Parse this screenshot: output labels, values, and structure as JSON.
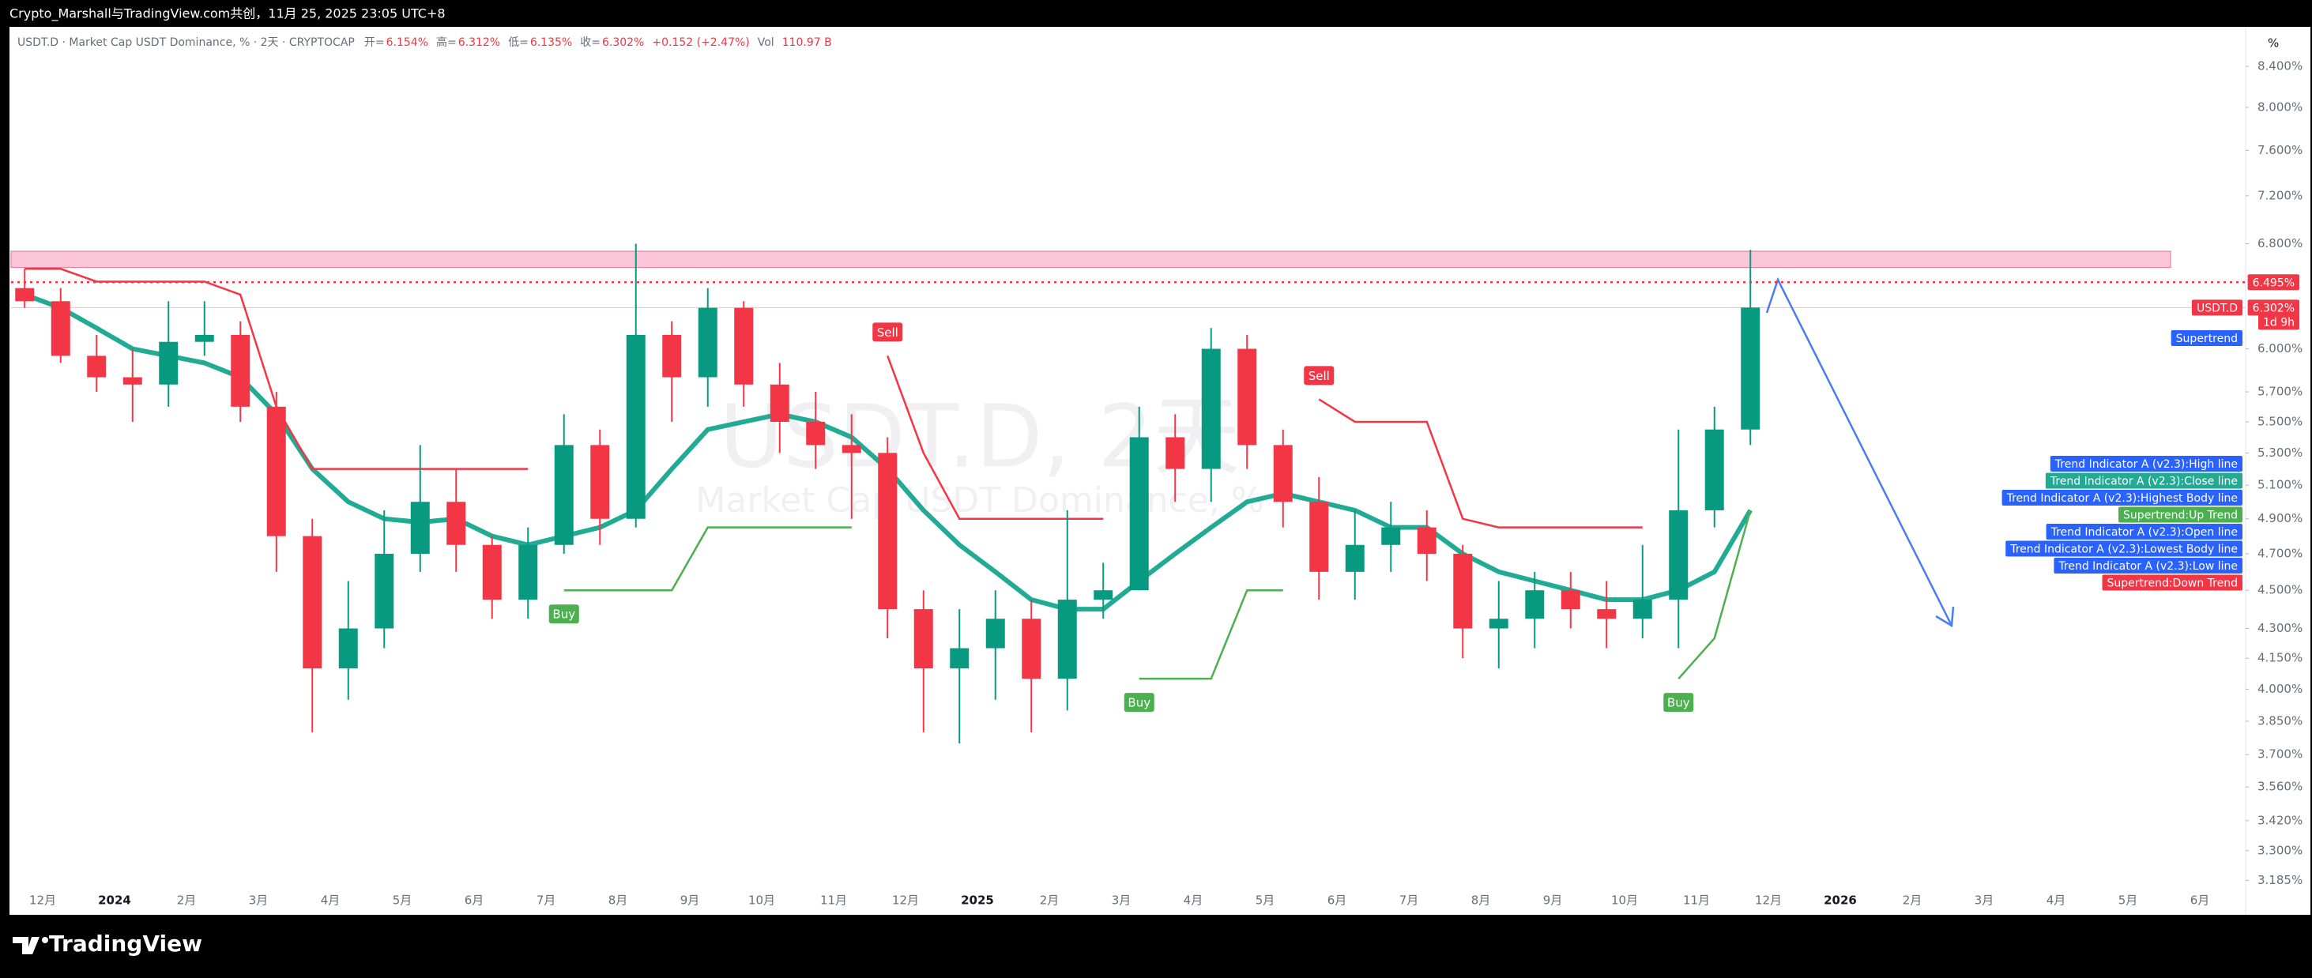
{
  "header": {
    "caption": "Crypto_Marshall与TradingView.com共创，11月 25, 2025 23:05 UTC+8",
    "brand": "TradingView"
  },
  "chart_data": {
    "type": "candlestick",
    "symbol_line": "USDT.D · Market Cap USDT Dominance, % · 2天 · CRYPTOCAP",
    "ohlc_line": [
      "开=",
      "6.154%",
      "高=",
      "6.312%",
      "低=",
      "6.135%",
      "收=",
      "6.302%",
      "+0.152 (+2.47%)",
      "Vol",
      "110.97 B"
    ],
    "watermark": [
      "USDT.D, 2天",
      "Market Cap USDT Dominance, %"
    ],
    "axis_unit": "%",
    "log_scale": true,
    "grid": false,
    "ylim": [
      3.06,
      8.78
    ],
    "yticks": [
      {
        "value": 8.4,
        "label": "8.400%"
      },
      {
        "value": 8.0,
        "label": "8.000%"
      },
      {
        "value": 7.6,
        "label": "7.600%"
      },
      {
        "value": 7.2,
        "label": "7.200%"
      },
      {
        "value": 6.8,
        "label": "6.800%"
      },
      {
        "value": 6.0,
        "label": "6.000%"
      },
      {
        "value": 5.7,
        "label": "5.700%"
      },
      {
        "value": 5.5,
        "label": "5.500%"
      },
      {
        "value": 5.3,
        "label": "5.300%"
      },
      {
        "value": 5.1,
        "label": "5.100%"
      },
      {
        "value": 4.9,
        "label": "4.900%"
      },
      {
        "value": 4.7,
        "label": "4.700%"
      },
      {
        "value": 4.5,
        "label": "4.500%"
      },
      {
        "value": 4.3,
        "label": "4.300%"
      },
      {
        "value": 4.15,
        "label": "4.150%"
      },
      {
        "value": 4.0,
        "label": "4.000%"
      },
      {
        "value": 3.85,
        "label": "3.850%"
      },
      {
        "value": 3.7,
        "label": "3.700%"
      },
      {
        "value": 3.56,
        "label": "3.560%"
      },
      {
        "value": 3.42,
        "label": "3.420%"
      },
      {
        "value": 3.3,
        "label": "3.300%"
      },
      {
        "value": 3.185,
        "label": "3.185%"
      }
    ],
    "categories": [
      null,
      "12月",
      null,
      "2024",
      null,
      "2月",
      null,
      "3月",
      null,
      "4月",
      null,
      "5月",
      null,
      "6月",
      null,
      "7月",
      null,
      "8月",
      null,
      "9月",
      null,
      "10月",
      null,
      "11月",
      null,
      "12月",
      null,
      "2025",
      null,
      "2月",
      null,
      "3月",
      null,
      "4月",
      null,
      "5月",
      null,
      "6月",
      null,
      "7月",
      null,
      "8月",
      null,
      "9月",
      null,
      "10月",
      null,
      "11月",
      null,
      "12月",
      null,
      "2026",
      null,
      "2月",
      null,
      "3月",
      null,
      "4月",
      null,
      "5月",
      null,
      "6月",
      null
    ],
    "up_color": "#089981",
    "down_color": "#f23645",
    "open": [
      6.45,
      6.35,
      5.95,
      5.8,
      5.75,
      6.05,
      6.1,
      5.6,
      4.8,
      4.1,
      4.3,
      4.7,
      5.0,
      4.75,
      4.45,
      4.75,
      5.35,
      4.9,
      6.1,
      5.8,
      6.3,
      5.75,
      5.5,
      5.35,
      5.3,
      4.4,
      4.1,
      4.2,
      4.35,
      4.05,
      4.45,
      4.5,
      5.4,
      5.2,
      6.0,
      5.35,
      5.0,
      4.6,
      4.75,
      4.85,
      4.7,
      4.3,
      4.35,
      4.5,
      4.4,
      4.35,
      4.45,
      4.95,
      5.45,
      null,
      null,
      null,
      null,
      null,
      null,
      null,
      null,
      null,
      null,
      null,
      null,
      null,
      null
    ],
    "high": [
      6.6,
      6.45,
      6.1,
      6.0,
      6.35,
      6.35,
      6.2,
      5.7,
      4.9,
      4.55,
      4.95,
      5.35,
      5.2,
      4.8,
      4.85,
      5.55,
      5.45,
      6.8,
      6.2,
      6.45,
      6.35,
      5.9,
      5.7,
      5.55,
      5.4,
      4.5,
      4.4,
      4.5,
      4.45,
      4.95,
      4.65,
      5.6,
      5.55,
      6.15,
      6.1,
      5.45,
      5.15,
      4.95,
      5.0,
      4.95,
      4.75,
      4.55,
      4.6,
      4.6,
      4.55,
      4.75,
      5.45,
      5.6,
      6.75,
      null,
      null,
      null,
      null,
      null,
      null,
      null,
      null,
      null,
      null,
      null,
      null,
      null,
      null
    ],
    "low": [
      6.3,
      5.9,
      5.7,
      5.5,
      5.6,
      5.95,
      5.5,
      4.6,
      3.8,
      3.95,
      4.2,
      4.6,
      4.6,
      4.35,
      4.35,
      4.7,
      4.75,
      4.85,
      5.5,
      5.6,
      5.6,
      5.3,
      5.2,
      4.9,
      4.25,
      3.8,
      3.75,
      3.95,
      3.8,
      3.9,
      4.35,
      4.5,
      5.0,
      5.0,
      5.2,
      4.85,
      4.45,
      4.45,
      4.6,
      4.55,
      4.15,
      4.1,
      4.2,
      4.3,
      4.2,
      4.25,
      4.2,
      4.85,
      5.35,
      null,
      null,
      null,
      null,
      null,
      null,
      null,
      null,
      null,
      null,
      null,
      null,
      null,
      null
    ],
    "close": [
      6.35,
      5.95,
      5.8,
      5.75,
      6.05,
      6.1,
      5.6,
      4.8,
      4.1,
      4.3,
      4.7,
      5.0,
      4.75,
      4.45,
      4.75,
      5.35,
      4.9,
      6.1,
      5.8,
      6.3,
      5.75,
      5.5,
      5.35,
      5.3,
      4.4,
      4.1,
      4.2,
      4.35,
      4.05,
      4.45,
      4.5,
      5.4,
      5.2,
      6.0,
      5.35,
      5.0,
      4.6,
      4.75,
      4.85,
      4.7,
      4.3,
      4.35,
      4.5,
      4.4,
      4.35,
      4.45,
      4.95,
      5.45,
      6.302,
      null,
      null,
      null,
      null,
      null,
      null,
      null,
      null,
      null,
      null,
      null,
      null,
      null,
      null
    ],
    "series": [
      {
        "name": "Supertrend:Up Trend",
        "color": "#4caf50",
        "values": [
          null,
          null,
          null,
          null,
          null,
          null,
          null,
          null,
          null,
          null,
          null,
          null,
          null,
          null,
          null,
          4.5,
          4.5,
          4.5,
          4.5,
          4.85,
          4.85,
          4.85,
          4.85,
          4.85,
          null,
          null,
          null,
          null,
          null,
          null,
          null,
          4.05,
          4.05,
          4.05,
          4.5,
          4.5,
          null,
          null,
          null,
          null,
          null,
          null,
          null,
          null,
          null,
          null,
          4.05,
          4.25,
          4.95,
          null,
          null,
          null,
          null,
          null,
          null,
          null,
          null,
          null,
          null,
          null,
          null,
          null,
          null
        ]
      },
      {
        "name": "Supertrend:Down Trend",
        "color": "#f23645",
        "values": [
          6.6,
          6.6,
          6.5,
          6.5,
          6.5,
          6.5,
          6.4,
          5.6,
          5.2,
          5.2,
          5.2,
          5.2,
          5.2,
          5.2,
          5.2,
          null,
          null,
          null,
          null,
          null,
          null,
          null,
          null,
          null,
          5.95,
          5.3,
          4.9,
          4.9,
          4.9,
          4.9,
          4.9,
          null,
          null,
          null,
          null,
          null,
          5.65,
          5.5,
          5.5,
          5.5,
          4.9,
          4.85,
          4.85,
          4.85,
          4.85,
          4.85,
          null,
          null,
          null,
          null,
          null,
          null,
          null,
          null,
          null,
          null,
          null,
          null,
          null,
          null,
          null,
          null,
          null
        ]
      },
      {
        "name": "Trend Indicator A (v2.3):Close line",
        "color": "#22ab94",
        "values": [
          6.4,
          6.3,
          6.15,
          6.0,
          5.95,
          5.9,
          5.8,
          5.55,
          5.2,
          5.0,
          4.9,
          4.88,
          4.9,
          4.8,
          4.75,
          4.8,
          4.85,
          4.95,
          5.2,
          5.45,
          5.5,
          5.55,
          5.5,
          5.4,
          5.2,
          4.95,
          4.75,
          4.6,
          4.45,
          4.4,
          4.4,
          4.55,
          4.7,
          4.85,
          5.0,
          5.05,
          5.0,
          4.95,
          4.85,
          4.85,
          4.7,
          4.6,
          4.55,
          4.5,
          4.45,
          4.45,
          4.5,
          4.6,
          4.95,
          null,
          null,
          null,
          null,
          null,
          null,
          null,
          null,
          null,
          null,
          null,
          null,
          null,
          null
        ]
      }
    ],
    "signals": [
      null,
      null,
      null,
      null,
      null,
      null,
      null,
      null,
      null,
      null,
      null,
      null,
      null,
      null,
      null,
      "Buy",
      null,
      null,
      null,
      null,
      null,
      null,
      null,
      null,
      "Sell",
      null,
      null,
      null,
      null,
      null,
      null,
      "Buy",
      null,
      null,
      null,
      null,
      "Sell",
      null,
      null,
      null,
      null,
      null,
      null,
      null,
      null,
      null,
      "Buy",
      null,
      null,
      null,
      null,
      null,
      null,
      null,
      null,
      null,
      null,
      null,
      null,
      null,
      null,
      null,
      null
    ],
    "zone": [
      6.61,
      6.74
    ],
    "resistance": {
      "value": 6.495,
      "label": "6.495%"
    },
    "last_price": {
      "value": 6.302,
      "label": "6.302%",
      "symbol": "USDT.D",
      "countdown": "1d 9h"
    },
    "supertrend_tag": "Supertrend",
    "legend": [
      {
        "label": "Trend Indicator A (v2.3):High line",
        "color": "#2962ff"
      },
      {
        "label": "Trend Indicator A (v2.3):Close line",
        "color": "#22ab94"
      },
      {
        "label": "Trend Indicator A (v2.3):Highest Body line",
        "color": "#2962ff"
      },
      {
        "label": "Supertrend:Up Trend",
        "color": "#4caf50"
      },
      {
        "label": "Trend Indicator A (v2.3):Open line",
        "color": "#2962ff"
      },
      {
        "label": "Trend Indicator A (v2.3):Lowest Body line",
        "color": "#2962ff"
      },
      {
        "label": "Trend Indicator A (v2.3):Low line",
        "color": "#2962ff"
      },
      {
        "label": "Supertrend:Down Trend",
        "color": "#f23645"
      }
    ]
  }
}
